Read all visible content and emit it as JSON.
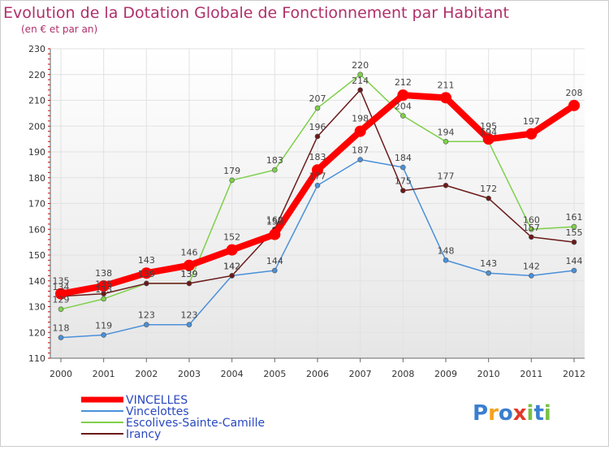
{
  "chart_data": {
    "type": "line",
    "title": "Evolution de la Dotation Globale de Fonctionnement par Habitant",
    "subtitle": "(en € et par an)",
    "xlabel": "",
    "ylabel": "",
    "categories": [
      "2000",
      "2001",
      "2002",
      "2003",
      "2004",
      "2005",
      "2006",
      "2007",
      "2008",
      "2009",
      "2010",
      "2011",
      "2012"
    ],
    "ylim": [
      110,
      230
    ],
    "yticks": [
      110,
      120,
      130,
      140,
      150,
      160,
      170,
      180,
      190,
      200,
      210,
      220,
      230
    ],
    "grid": true,
    "legend_position": "bottom-left",
    "series": [
      {
        "name": "Vincelottes",
        "color": "#4a90d9",
        "values": [
          118,
          119,
          123,
          123,
          142,
          144,
          177,
          187,
          184,
          148,
          143,
          142,
          144
        ]
      },
      {
        "name": "Escolives-Sainte-Camille",
        "color": "#7ed04a",
        "values": [
          129,
          133,
          139,
          139,
          179,
          183,
          207,
          220,
          204,
          194,
          194,
          160,
          161
        ]
      },
      {
        "name": "Irancy",
        "color": "#6b1a1a",
        "values": [
          134,
          135,
          139,
          139,
          142,
          160,
          196,
          214,
          175,
          177,
          172,
          157,
          155
        ]
      },
      {
        "name": "VINCELLES",
        "color": "#ff0000",
        "values": [
          135,
          138,
          143,
          146,
          152,
          158,
          183,
          198,
          212,
          211,
          195,
          197,
          208
        ]
      }
    ],
    "legend": [
      "VINCELLES",
      "Vincelottes",
      "Escolives-Sainte-Camille",
      "Irancy"
    ]
  },
  "branding": {
    "logo_text": "Proxiti"
  }
}
